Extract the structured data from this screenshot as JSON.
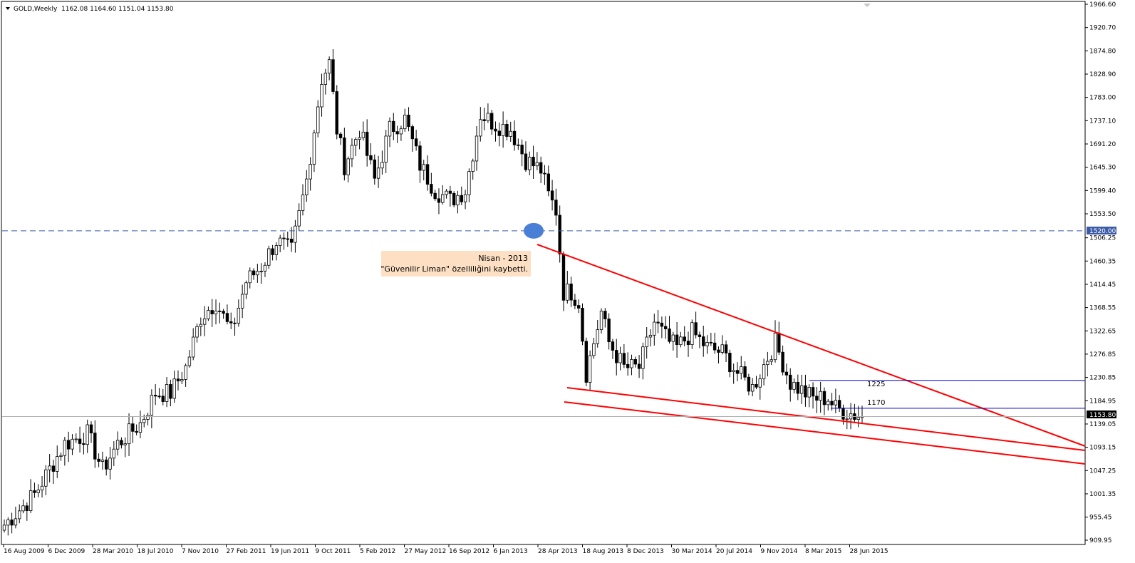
{
  "header": {
    "symbol": "GOLD,Weekly",
    "ohlc": "1162.08 1164.60 1151.04 1153.80"
  },
  "chart_data": {
    "type": "candlestick",
    "ylim": [
      909.95,
      1966.6
    ],
    "y_ticks": [
      "1966.60",
      "1920.70",
      "1874.80",
      "1828.90",
      "1783.00",
      "1737.10",
      "1691.20",
      "1645.30",
      "1599.40",
      "1553.50",
      "1506.25",
      "1460.35",
      "1414.45",
      "1368.55",
      "1322.65",
      "1276.85",
      "1230.85",
      "1184.95",
      "1139.05",
      "1093.15",
      "1047.25",
      "1001.35",
      "955.45",
      "909.95"
    ],
    "x_ticks": [
      "16 Aug 2009",
      "6 Dec 2009",
      "28 Mar 2010",
      "18 Jul 2010",
      "7 Nov 2010",
      "27 Feb 2011",
      "19 Jun 2011",
      "9 Oct 2011",
      "5 Feb 2012",
      "27 May 2012",
      "16 Sep 2012",
      "6 Jan 2013",
      "28 Apr 2013",
      "18 Aug 2013",
      "8 Dec 2013",
      "30 Mar 2014",
      "20 Jul 2014",
      "9 Nov 2014",
      "8 Mar 2015",
      "28 Jun 2015"
    ],
    "price_path": [
      [
        0,
        940
      ],
      [
        8,
        1000
      ],
      [
        16,
        1100
      ],
      [
        22,
        1120
      ],
      [
        26,
        1050
      ],
      [
        30,
        1100
      ],
      [
        36,
        1140
      ],
      [
        40,
        1200
      ],
      [
        44,
        1200
      ],
      [
        48,
        1250
      ],
      [
        52,
        1350
      ],
      [
        56,
        1380
      ],
      [
        60,
        1320
      ],
      [
        64,
        1420
      ],
      [
        68,
        1450
      ],
      [
        72,
        1500
      ],
      [
        76,
        1480
      ],
      [
        80,
        1620
      ],
      [
        84,
        1820
      ],
      [
        86,
        1850
      ],
      [
        88,
        1720
      ],
      [
        90,
        1650
      ],
      [
        94,
        1720
      ],
      [
        98,
        1620
      ],
      [
        102,
        1720
      ],
      [
        106,
        1740
      ],
      [
        110,
        1650
      ],
      [
        114,
        1600
      ],
      [
        118,
        1580
      ],
      [
        122,
        1600
      ],
      [
        126,
        1750
      ],
      [
        130,
        1730
      ],
      [
        134,
        1720
      ],
      [
        138,
        1660
      ],
      [
        142,
        1640
      ],
      [
        144,
        1590
      ],
      [
        146,
        1560
      ],
      [
        148,
        1400
      ],
      [
        150,
        1400
      ],
      [
        152,
        1380
      ],
      [
        154,
        1240
      ],
      [
        158,
        1360
      ],
      [
        160,
        1300
      ],
      [
        164,
        1250
      ],
      [
        168,
        1250
      ],
      [
        172,
        1340
      ],
      [
        176,
        1300
      ],
      [
        178,
        1290
      ],
      [
        182,
        1320
      ],
      [
        186,
        1290
      ],
      [
        190,
        1280
      ],
      [
        194,
        1240
      ],
      [
        198,
        1210
      ],
      [
        200,
        1240
      ],
      [
        204,
        1300
      ],
      [
        208,
        1220
      ],
      [
        212,
        1200
      ],
      [
        214,
        1190
      ],
      [
        218,
        1190
      ],
      [
        220,
        1170
      ],
      [
        224,
        1160
      ],
      [
        227,
        1153.8
      ]
    ],
    "current_price": "1153.80",
    "current_price_value": 1153.8,
    "hline": {
      "label": "1520.00",
      "value": 1520.0
    },
    "resistance_label": "1225",
    "support_label": "1170",
    "resistance_value": 1225,
    "support_value": 1170,
    "annotation": {
      "line1": "Nisan - 2013",
      "line2": "\"Güvenilir Liman\" özelliliğini kaybetti."
    },
    "colors": {
      "candle": "#000000",
      "trend": "#ff0000",
      "hline": "#3b5ba8",
      "level": "#0000cc",
      "marker": "#4a7fd6",
      "note_bg": "#fde0c4",
      "current_line": "#b0b0b0"
    }
  }
}
